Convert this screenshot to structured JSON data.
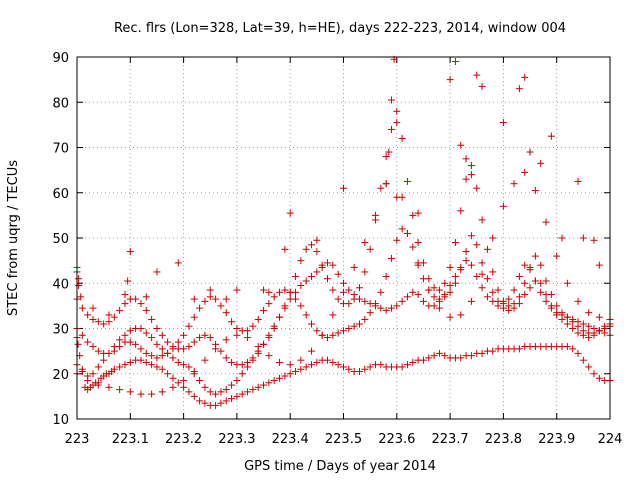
{
  "chart_data": {
    "type": "scatter",
    "title": "Rec. flrs (Lon=328, Lat=39, h=HE), days 222-223, 2014, window 004",
    "xlabel": "GPS time / Days of year 2014",
    "ylabel": "STEC from uqrg / TECUs",
    "xlim": [
      223,
      224
    ],
    "ylim": [
      10,
      90
    ],
    "xticks": [
      223,
      223.1,
      223.2,
      223.3,
      223.4,
      223.5,
      223.6,
      223.7,
      223.8,
      223.9,
      224
    ],
    "xtick_labels": [
      "223",
      "223.1",
      "223.2",
      "223.3",
      "223.4",
      "223.5",
      "223.6",
      "223.7",
      "223.8",
      "223.9",
      "224"
    ],
    "yticks": [
      10,
      20,
      30,
      40,
      50,
      60,
      70,
      80,
      90
    ],
    "ytick_labels": [
      "10",
      "20",
      "30",
      "40",
      "50",
      "60",
      "70",
      "80",
      "90"
    ],
    "grid": true,
    "marker": "+",
    "color": "#cc0000",
    "series": [
      {
        "x": [
          223.0,
          223.003,
          223.0,
          223.002,
          223.005,
          223.01,
          223.015,
          223.02,
          223.025,
          223.03,
          223.035,
          223.04,
          223.045,
          223.05,
          223.055,
          223.06,
          223.065,
          223.07,
          223.08,
          223.09,
          223.1,
          223.11,
          223.12,
          223.13,
          223.14,
          223.15,
          223.16,
          223.17,
          223.18,
          223.19,
          223.2,
          223.21,
          223.22,
          223.23,
          223.24,
          223.25,
          223.26,
          223.27,
          223.28,
          223.29,
          223.3,
          223.31,
          223.32,
          223.33,
          223.34,
          223.35,
          223.36,
          223.37,
          223.38,
          223.39,
          223.4,
          223.41,
          223.42,
          223.43,
          223.44,
          223.45,
          223.46,
          223.47,
          223.48,
          223.49,
          223.5,
          223.51,
          223.52,
          223.53,
          223.54,
          223.55,
          223.56,
          223.57,
          223.58,
          223.59,
          223.6,
          223.61,
          223.62,
          223.63,
          223.64,
          223.65,
          223.66,
          223.67,
          223.68,
          223.69,
          223.7,
          223.71,
          223.72,
          223.73,
          223.74,
          223.75,
          223.76,
          223.77,
          223.78,
          223.79,
          223.8,
          223.81,
          223.82,
          223.83,
          223.84,
          223.85,
          223.86,
          223.87,
          223.88,
          223.89,
          223.9,
          223.91,
          223.92,
          223.93,
          223.94,
          223.95,
          223.96,
          223.97,
          223.98,
          223.99,
          224.0
        ],
        "y": [
          43.5,
          41.0,
          28.0,
          26.5,
          24.0,
          20.5,
          17.0,
          16.5,
          17.0,
          17.5,
          18.0,
          18.0,
          19.0,
          19.5,
          20.0,
          20.0,
          20.5,
          21.0,
          21.5,
          22.0,
          22.5,
          23.0,
          23.0,
          22.5,
          22.0,
          21.5,
          21.0,
          20.0,
          19.0,
          18.0,
          17.0,
          16.0,
          15.0,
          14.0,
          13.5,
          13.0,
          13.0,
          13.5,
          14.0,
          14.5,
          15.0,
          15.5,
          16.0,
          16.5,
          17.0,
          17.5,
          18.0,
          18.5,
          19.0,
          19.5,
          20.0,
          20.5,
          21.0,
          21.5,
          22.0,
          22.5,
          23.0,
          23.0,
          22.5,
          22.0,
          21.5,
          21.0,
          20.5,
          20.5,
          21.0,
          21.5,
          22.0,
          22.0,
          21.5,
          21.5,
          21.5,
          21.5,
          22.0,
          22.5,
          23.0,
          23.0,
          23.5,
          24.0,
          24.5,
          24.0,
          23.5,
          23.5,
          23.5,
          24.0,
          24.0,
          24.5,
          24.5,
          25.0,
          25.0,
          25.5,
          25.5,
          25.5,
          25.5,
          25.5,
          26.0,
          26.0,
          26.0,
          26.0,
          26.0,
          26.0,
          26.0,
          26.0,
          26.0,
          25.5,
          24.5,
          23.0,
          21.5,
          20.0,
          19.0,
          18.5,
          18.5
        ]
      },
      {
        "x": [
          223.0,
          223.01,
          223.02,
          223.03,
          223.04,
          223.05,
          223.06,
          223.07,
          223.08,
          223.09,
          223.1,
          223.11,
          223.12,
          223.13,
          223.14,
          223.15,
          223.16,
          223.17,
          223.18,
          223.19,
          223.2,
          223.21,
          223.22,
          223.23,
          223.24,
          223.25,
          223.26,
          223.27,
          223.28,
          223.29,
          223.3,
          223.31,
          223.32,
          223.33,
          223.34,
          223.35,
          223.36,
          223.37,
          223.38,
          223.39,
          223.4,
          223.41,
          223.42,
          223.43,
          223.44,
          223.45,
          223.46,
          223.47,
          223.48,
          223.49,
          223.5,
          223.51,
          223.52,
          223.53,
          223.54,
          223.55,
          223.56,
          223.57,
          223.58,
          223.59,
          223.6,
          223.61,
          223.62,
          223.63,
          223.64,
          223.65,
          223.66,
          223.67,
          223.68,
          223.69,
          223.7,
          223.71,
          223.72,
          223.73,
          223.74,
          223.75,
          223.76,
          223.77,
          223.78,
          223.79,
          223.8,
          223.81,
          223.82,
          223.83,
          223.84,
          223.85,
          223.86,
          223.87,
          223.88,
          223.89,
          223.9,
          223.91,
          223.92,
          223.93,
          223.94,
          223.95,
          223.96,
          223.97,
          223.98,
          223.99,
          224.0
        ],
        "y": [
          22.0,
          21.0,
          19.5,
          20.0,
          21.5,
          23.0,
          24.5,
          26.0,
          27.5,
          28.5,
          29.5,
          30.0,
          30.0,
          29.0,
          28.0,
          26.5,
          25.5,
          24.5,
          23.5,
          22.5,
          22.0,
          21.5,
          20.0,
          18.5,
          17.0,
          16.0,
          15.5,
          16.0,
          16.5,
          17.5,
          18.5,
          20.0,
          21.5,
          23.0,
          24.5,
          26.5,
          28.5,
          30.5,
          32.5,
          34.5,
          36.5,
          38.0,
          39.5,
          40.5,
          41.5,
          42.5,
          43.5,
          44.5,
          44.0,
          42.0,
          40.0,
          38.5,
          37.5,
          36.5,
          36.0,
          35.5,
          35.0,
          34.5,
          34.0,
          34.5,
          35.0,
          36.0,
          37.0,
          38.0,
          37.5,
          36.0,
          35.0,
          35.0,
          36.0,
          37.5,
          39.5,
          41.5,
          43.5,
          45.0,
          44.0,
          41.5,
          39.0,
          37.0,
          36.0,
          35.0,
          34.5,
          34.0,
          34.5,
          35.5,
          37.5,
          39.0,
          40.5,
          40.0,
          37.5,
          35.0,
          33.0,
          32.0,
          31.0,
          30.0,
          29.0,
          28.5,
          28.0,
          28.5,
          29.5,
          30.5,
          31.0
        ]
      },
      {
        "x": [
          223.0,
          223.01,
          223.02,
          223.03,
          223.04,
          223.05,
          223.06,
          223.07,
          223.08,
          223.09,
          223.1,
          223.11,
          223.12,
          223.13,
          223.14,
          223.15,
          223.16,
          223.17,
          223.18,
          223.19,
          223.2,
          223.21,
          223.22,
          223.23,
          223.24,
          223.25,
          223.26,
          223.27,
          223.28,
          223.29,
          223.3,
          223.31,
          223.32,
          223.33,
          223.34,
          223.35,
          223.36,
          223.37,
          223.38,
          223.39,
          223.4,
          223.41,
          223.42,
          223.43,
          223.44,
          223.45,
          223.46,
          223.47,
          223.48,
          223.49,
          223.5,
          223.51,
          223.52,
          223.53,
          223.54,
          223.55,
          223.56,
          223.57,
          223.58,
          223.59,
          223.6,
          223.61,
          223.62,
          223.63,
          223.64,
          223.65,
          223.66,
          223.67,
          223.68,
          223.69,
          223.7,
          223.71,
          223.72,
          223.73,
          223.74,
          223.75,
          223.76,
          223.77,
          223.78,
          223.79,
          223.8,
          223.81,
          223.82,
          223.83,
          223.84,
          223.85,
          223.86,
          223.87,
          223.88,
          223.89,
          223.9,
          223.91,
          223.92,
          223.93,
          223.94,
          223.95,
          223.96,
          223.97,
          223.98,
          223.99,
          224.0
        ],
        "y": [
          30.0,
          28.5,
          27.0,
          26.0,
          25.0,
          24.5,
          24.5,
          25.0,
          26.0,
          27.0,
          27.0,
          26.5,
          25.5,
          24.5,
          24.0,
          23.5,
          24.0,
          24.5,
          25.5,
          27.0,
          28.5,
          30.5,
          32.5,
          34.5,
          36.0,
          37.0,
          36.5,
          35.0,
          33.5,
          31.5,
          30.0,
          29.5,
          29.5,
          30.5,
          32.0,
          34.0,
          35.5,
          37.0,
          38.0,
          38.5,
          38.0,
          36.5,
          35.0,
          33.0,
          31.0,
          29.5,
          28.5,
          28.0,
          28.5,
          29.0,
          29.5,
          30.0,
          30.5,
          31.0,
          32.0,
          33.5,
          35.5,
          38.0,
          41.5,
          45.5,
          49.5,
          52.0,
          51.0,
          48.0,
          44.5,
          41.0,
          38.5,
          37.0,
          36.5,
          37.0,
          38.0,
          40.0,
          43.0,
          47.0,
          50.5,
          48.5,
          44.5,
          41.0,
          38.0,
          36.0,
          35.5,
          36.5,
          38.5,
          41.5,
          44.0,
          43.0,
          40.5,
          38.0,
          36.0,
          34.5,
          33.5,
          33.0,
          32.5,
          32.0,
          31.5,
          31.0,
          30.5,
          30.0,
          29.5,
          29.0,
          28.5
        ]
      },
      {
        "x": [
          223.0,
          223.01,
          223.02,
          223.03,
          223.04,
          223.05,
          223.06,
          223.07,
          223.08,
          223.09,
          223.1,
          223.11,
          223.12,
          223.13,
          223.14,
          223.15,
          223.16,
          223.17,
          223.18,
          223.19,
          223.2,
          223.21,
          223.22,
          223.23,
          223.24,
          223.25,
          223.26,
          223.27,
          223.28,
          223.29,
          223.3,
          223.31,
          223.32,
          223.33,
          223.34,
          223.35,
          223.36,
          223.37,
          223.38,
          223.39,
          223.4,
          223.41,
          223.42,
          223.43,
          223.44,
          223.45,
          223.46,
          223.47,
          223.48,
          223.49,
          223.5,
          223.51,
          223.52,
          223.53,
          223.54,
          223.55,
          223.56,
          223.57,
          223.58,
          223.59,
          223.6,
          223.61,
          223.62,
          223.63,
          223.64,
          223.65,
          223.66,
          223.67,
          223.68,
          223.69,
          223.7,
          223.71,
          223.72,
          223.73,
          223.74,
          223.75,
          223.76,
          223.77,
          223.78,
          223.79,
          223.8,
          223.81,
          223.82,
          223.83,
          223.84,
          223.85,
          223.86,
          223.87,
          223.88,
          223.89,
          223.9,
          223.91,
          223.92,
          223.93,
          223.94,
          223.95,
          223.96,
          223.97,
          223.98,
          223.99,
          224.0
        ],
        "y": [
          36.5,
          34.5,
          33.0,
          32.0,
          31.5,
          31.0,
          31.5,
          32.5,
          34.0,
          35.5,
          36.5,
          36.5,
          35.5,
          34.0,
          32.0,
          30.0,
          28.5,
          27.0,
          26.0,
          25.5,
          25.5,
          26.0,
          27.0,
          28.0,
          28.5,
          28.0,
          26.5,
          25.0,
          23.5,
          22.5,
          22.0,
          22.0,
          22.5,
          23.5,
          25.0,
          26.5,
          28.0,
          30.0,
          32.5,
          35.0,
          38.0,
          41.5,
          45.0,
          47.5,
          48.5,
          47.0,
          44.0,
          41.0,
          38.5,
          36.5,
          35.5,
          35.5,
          36.5,
          39.0,
          42.5,
          47.5,
          54.0,
          61.0,
          68.0,
          74.0,
          78.0,
          72.0,
          62.5,
          55.0,
          49.0,
          44.5,
          41.0,
          39.0,
          38.5,
          40.0,
          43.5,
          49.0,
          56.0,
          63.0,
          66.0,
          61.0,
          54.0,
          47.5,
          42.5,
          38.5,
          36.0,
          35.0,
          35.5,
          37.0,
          40.0,
          43.5,
          46.0,
          44.0,
          40.5,
          37.5,
          35.0,
          33.5,
          32.5,
          31.5,
          30.5,
          29.5,
          29.0,
          29.0,
          29.5,
          30.0,
          30.5
        ]
      },
      {
        "x": [
          223.0,
          223.02,
          223.04,
          223.06,
          223.08,
          223.1,
          223.12,
          223.14,
          223.16,
          223.18,
          223.2,
          223.22,
          223.24,
          223.26,
          223.28,
          223.3,
          223.32,
          223.34,
          223.36,
          223.38,
          223.4,
          223.42,
          223.44,
          223.46,
          223.48,
          223.5,
          223.52,
          223.54,
          223.56,
          223.58,
          223.6,
          223.62,
          223.64,
          223.66,
          223.68,
          223.7,
          223.72,
          223.74,
          223.76,
          223.78,
          223.8,
          223.82,
          223.84,
          223.86,
          223.88,
          223.9,
          223.92,
          223.94,
          223.96,
          223.98,
          224.0
        ],
        "y": [
          20.0,
          18.5,
          17.5,
          17.0,
          16.5,
          16.0,
          15.5,
          15.5,
          16.0,
          17.0,
          18.5,
          20.5,
          23.0,
          25.5,
          27.5,
          28.5,
          28.0,
          26.0,
          24.0,
          22.5,
          22.0,
          23.0,
          25.0,
          28.5,
          33.0,
          38.0,
          43.5,
          49.0,
          55.0,
          62.0,
          59.0,
          51.0,
          44.0,
          38.5,
          34.5,
          32.5,
          33.0,
          36.0,
          42.0,
          50.0,
          57.0,
          62.0,
          64.5,
          60.5,
          53.5,
          46.0,
          40.0,
          36.0,
          33.5,
          32.5,
          32.0
        ]
      },
      {
        "x": [
          223.0,
          223.003,
          223.007,
          223.03,
          223.06,
          223.09,
          223.095,
          223.1,
          223.13,
          223.15,
          223.19,
          223.22,
          223.25,
          223.28,
          223.3,
          223.35,
          223.36,
          223.39,
          223.4,
          223.45,
          223.5,
          223.58,
          223.585,
          223.59,
          223.595,
          223.6,
          223.61,
          223.64,
          223.7,
          223.71,
          223.72,
          223.73,
          223.74,
          223.75,
          223.76,
          223.8,
          223.83,
          223.84,
          223.85,
          223.87,
          223.89,
          223.91,
          223.94,
          223.95,
          223.97,
          223.98
        ],
        "y": [
          42.5,
          39.5,
          37.0,
          34.5,
          33.0,
          37.5,
          40.5,
          47.0,
          37.0,
          42.5,
          44.5,
          36.5,
          38.5,
          36.5,
          38.5,
          38.5,
          38.0,
          47.5,
          55.5,
          49.5,
          61.0,
          62.0,
          69.0,
          80.5,
          89.5,
          75.5,
          59.0,
          55.5,
          85.0,
          89.0,
          70.5,
          67.5,
          64.0,
          86.0,
          83.5,
          75.5,
          83.0,
          85.5,
          69.0,
          66.5,
          72.5,
          50.0,
          62.5,
          50.0,
          49.5,
          44.0
        ]
      }
    ]
  }
}
